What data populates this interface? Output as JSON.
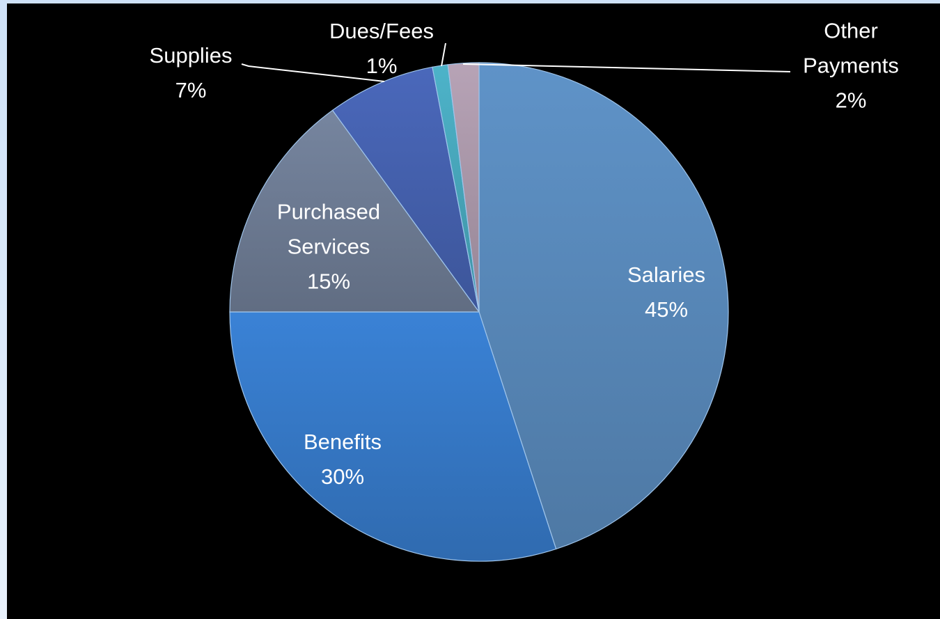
{
  "chart_data": {
    "type": "pie",
    "categories": [
      "Salaries",
      "Benefits",
      "Purchased Services",
      "Supplies",
      "Dues/Fees",
      "Other Payments"
    ],
    "values": [
      45,
      30,
      15,
      7,
      1,
      2
    ],
    "value_labels": [
      "45%",
      "30%",
      "15%",
      "7%",
      "1%",
      "2%"
    ],
    "colors": [
      "#5f93c8",
      "#3a82d6",
      "#76859f",
      "#4a68bb",
      "#4db3c9",
      "#b7a3b6"
    ]
  }
}
